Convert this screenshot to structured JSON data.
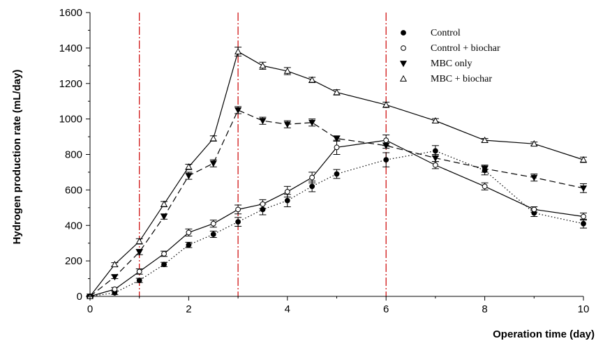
{
  "chart_data": {
    "type": "line",
    "title": "",
    "xlabel": "Operation time (day)",
    "ylabel": "Hydrogen production rate (mL/day)",
    "xlim": [
      0,
      10
    ],
    "ylim": [
      0,
      1600
    ],
    "xticks": [
      0,
      2,
      4,
      6,
      8,
      10
    ],
    "yticks": [
      0,
      200,
      400,
      600,
      800,
      1000,
      1200,
      1400,
      1600
    ],
    "grid": false,
    "legend_position": "top-right",
    "reference_lines": [
      1,
      3,
      6
    ],
    "reference_line_color": "#cc0000",
    "series": [
      {
        "name": "Control",
        "marker": "filled-circle",
        "line": "dotted",
        "x": [
          0,
          0.5,
          1,
          1.5,
          2,
          2.5,
          3,
          3.5,
          4,
          4.5,
          5,
          6,
          7,
          8,
          9,
          10
        ],
        "y": [
          0,
          20,
          90,
          180,
          290,
          350,
          420,
          490,
          540,
          620,
          690,
          770,
          820,
          710,
          470,
          410
        ],
        "err": [
          5,
          10,
          12,
          12,
          15,
          18,
          25,
          30,
          35,
          30,
          25,
          40,
          30,
          25,
          20,
          25
        ]
      },
      {
        "name": "Control + biochar",
        "marker": "open-circle",
        "line": "solid",
        "x": [
          0,
          0.5,
          1,
          1.5,
          2,
          2.5,
          3,
          3.5,
          4,
          4.5,
          5,
          6,
          7,
          8,
          9,
          10
        ],
        "y": [
          0,
          40,
          140,
          240,
          360,
          410,
          490,
          520,
          590,
          670,
          840,
          880,
          740,
          620,
          490,
          450
        ],
        "err": [
          5,
          10,
          15,
          15,
          20,
          20,
          25,
          25,
          30,
          30,
          40,
          30,
          20,
          20,
          15,
          20
        ]
      },
      {
        "name": "MBC only",
        "marker": "filled-triangle-down",
        "line": "dashed",
        "x": [
          0,
          0.5,
          1,
          1.5,
          2,
          2.5,
          3,
          3.5,
          4,
          4.5,
          5,
          6,
          7,
          8,
          9,
          10
        ],
        "y": [
          0,
          110,
          250,
          450,
          680,
          750,
          1050,
          990,
          970,
          980,
          890,
          850,
          780,
          720,
          670,
          610
        ],
        "err": [
          5,
          10,
          15,
          15,
          20,
          20,
          20,
          20,
          20,
          20,
          15,
          15,
          20,
          20,
          20,
          25
        ]
      },
      {
        "name": "MBC + biochar",
        "marker": "open-triangle-up",
        "line": "solid",
        "x": [
          0,
          0.5,
          1,
          1.5,
          2,
          2.5,
          3,
          3.5,
          4,
          4.5,
          5,
          6,
          7,
          8,
          9,
          10
        ],
        "y": [
          0,
          180,
          310,
          520,
          730,
          890,
          1380,
          1300,
          1270,
          1220,
          1150,
          1080,
          990,
          880,
          860,
          770
        ],
        "err": [
          5,
          10,
          15,
          15,
          15,
          15,
          25,
          20,
          20,
          15,
          15,
          15,
          12,
          10,
          10,
          15
        ]
      }
    ]
  }
}
